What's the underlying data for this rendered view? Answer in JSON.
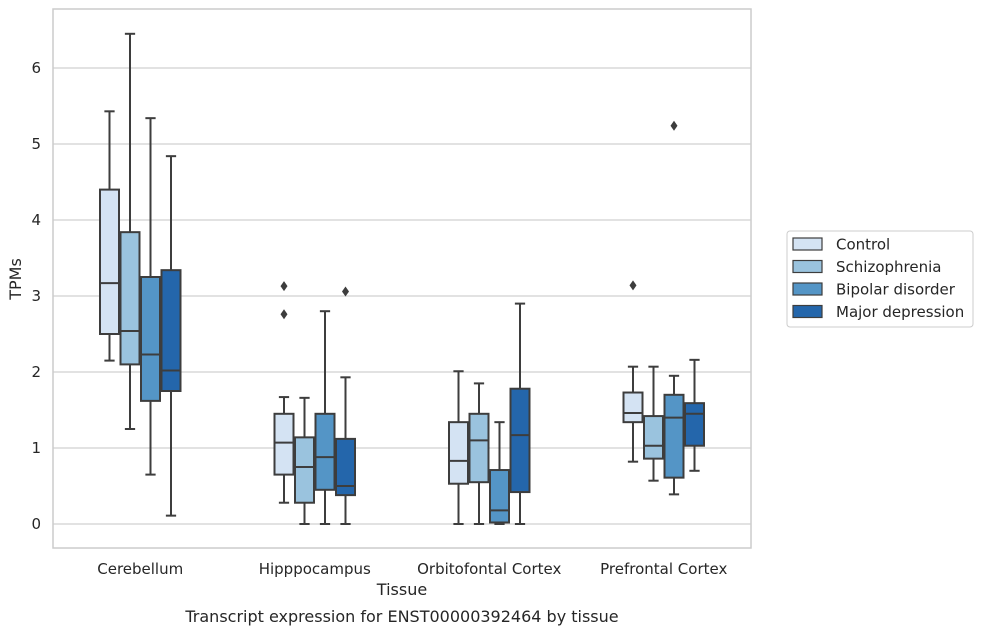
{
  "chart_data": {
    "type": "box",
    "caption": "Transcript expression for ENST00000392464 by tissue",
    "xlabel": "Tissue",
    "ylabel": "TPMs",
    "ylim": [
      -0.3,
      6.8
    ],
    "yticks": [
      "0",
      "1",
      "2",
      "3",
      "4",
      "5",
      "6"
    ],
    "grid": true,
    "legend_position": "right",
    "categories": [
      "Cerebellum",
      "Hipppocampus",
      "Orbitofontal Cortex",
      "Prefrontal Cortex"
    ],
    "series": [
      {
        "name": "Control",
        "color": "#d4e3f3",
        "boxes": [
          {
            "min": 2.15,
            "q1": 2.5,
            "median": 3.17,
            "q3": 4.4,
            "max": 5.43,
            "outliers": []
          },
          {
            "min": 0.28,
            "q1": 0.65,
            "median": 1.07,
            "q3": 1.45,
            "max": 1.67,
            "outliers": [
              2.76,
              3.13
            ]
          },
          {
            "min": 0.0,
            "q1": 0.53,
            "median": 0.83,
            "q3": 1.34,
            "max": 2.01,
            "outliers": []
          },
          {
            "min": 0.82,
            "q1": 1.34,
            "median": 1.46,
            "q3": 1.73,
            "max": 2.07,
            "outliers": [
              3.14
            ]
          }
        ]
      },
      {
        "name": "Schizophrenia",
        "color": "#9ac3de",
        "boxes": [
          {
            "min": 1.25,
            "q1": 2.1,
            "median": 2.54,
            "q3": 3.84,
            "max": 6.45,
            "outliers": []
          },
          {
            "min": 0.0,
            "q1": 0.28,
            "median": 0.75,
            "q3": 1.14,
            "max": 1.66,
            "outliers": []
          },
          {
            "min": 0.0,
            "q1": 0.55,
            "median": 1.1,
            "q3": 1.45,
            "max": 1.85,
            "outliers": []
          },
          {
            "min": 0.57,
            "q1": 0.86,
            "median": 1.03,
            "q3": 1.42,
            "max": 2.07,
            "outliers": []
          }
        ]
      },
      {
        "name": "Bipolar disorder",
        "color": "#5495c6",
        "boxes": [
          {
            "min": 0.65,
            "q1": 1.62,
            "median": 2.23,
            "q3": 3.25,
            "max": 5.34,
            "outliers": []
          },
          {
            "min": 0.0,
            "q1": 0.45,
            "median": 0.88,
            "q3": 1.45,
            "max": 2.8,
            "outliers": []
          },
          {
            "min": 0.0,
            "q1": 0.02,
            "median": 0.18,
            "q3": 0.71,
            "max": 1.34,
            "outliers": []
          },
          {
            "min": 0.39,
            "q1": 0.61,
            "median": 1.4,
            "q3": 1.7,
            "max": 1.95,
            "outliers": [
              5.24
            ]
          }
        ]
      },
      {
        "name": "Major depression",
        "color": "#2466ab",
        "boxes": [
          {
            "min": 0.11,
            "q1": 1.75,
            "median": 2.02,
            "q3": 3.34,
            "max": 4.84,
            "outliers": []
          },
          {
            "min": 0.0,
            "q1": 0.38,
            "median": 0.5,
            "q3": 1.12,
            "max": 1.93,
            "outliers": [
              3.06
            ]
          },
          {
            "min": 0.0,
            "q1": 0.42,
            "median": 1.17,
            "q3": 1.78,
            "max": 2.9,
            "outliers": []
          },
          {
            "min": 0.7,
            "q1": 1.03,
            "median": 1.45,
            "q3": 1.59,
            "max": 2.16,
            "outliers": []
          }
        ]
      }
    ]
  }
}
